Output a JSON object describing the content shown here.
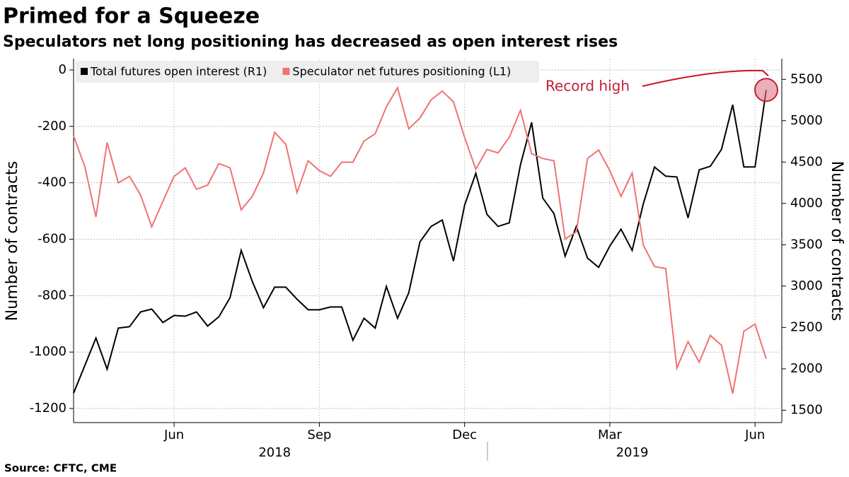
{
  "chart_data": {
    "type": "line",
    "title": "Primed for a Squeeze",
    "subtitle": "Speculators net long positioning has decreased as open interest rises",
    "source": "Source: CFTC, CME",
    "y_label": "Number of contracts",
    "y2_label": "Number of contracts",
    "annotation": "Record high",
    "categories": [
      null,
      null,
      null,
      null,
      null,
      null,
      null,
      null,
      null,
      "Jun",
      null,
      null,
      null,
      null,
      null,
      null,
      null,
      null,
      null,
      null,
      null,
      null,
      "Sep",
      null,
      null,
      null,
      null,
      null,
      null,
      null,
      null,
      null,
      null,
      null,
      null,
      "Dec",
      null,
      null,
      null,
      null,
      null,
      null,
      null,
      null,
      null,
      null,
      null,
      null,
      "Mar",
      null,
      null,
      null,
      null,
      null,
      null,
      null,
      null,
      null,
      null,
      null,
      null,
      "Jun",
      null
    ],
    "year_categories": [
      null,
      null,
      null,
      null,
      null,
      null,
      null,
      null,
      null,
      null,
      null,
      null,
      null,
      null,
      null,
      null,
      null,
      null,
      "2018",
      null,
      null,
      null,
      null,
      null,
      null,
      null,
      null,
      null,
      null,
      null,
      null,
      null,
      null,
      null,
      null,
      null,
      null,
      null,
      null,
      null,
      null,
      null,
      null,
      null,
      null,
      null,
      null,
      null,
      null,
      null,
      "2019",
      null,
      null,
      null,
      null,
      null,
      null,
      null,
      null,
      null,
      null,
      null,
      null
    ],
    "series": [
      {
        "name": "Total futures open interest (R1)",
        "color": "#000000",
        "axis": "y2",
        "values": [
          1705,
          2038,
          2372,
          1996,
          2492,
          2509,
          2688,
          2722,
          2560,
          2645,
          2637,
          2688,
          2517,
          2628,
          2859,
          3432,
          3056,
          2739,
          2987,
          2987,
          2842,
          2714,
          2714,
          2748,
          2748,
          2346,
          2611,
          2492,
          2996,
          2611,
          2919,
          3534,
          3722,
          3799,
          3303,
          3979,
          4363,
          3868,
          3722,
          3765,
          4466,
          4979,
          4064,
          3876,
          3363,
          3722,
          3338,
          3227,
          3483,
          3688,
          3432,
          3996,
          4440,
          4329,
          4320,
          3825,
          4406,
          4449,
          4654,
          5192,
          4440,
          4440,
          5372
        ]
      },
      {
        "name": "Speculator net futures positioning (L1)",
        "color": "#f07272",
        "axis": "y",
        "values": [
          -234,
          -342,
          -521,
          -257,
          -400,
          -377,
          -443,
          -556,
          -465,
          -377,
          -347,
          -423,
          -408,
          -332,
          -347,
          -496,
          -448,
          -365,
          -221,
          -264,
          -435,
          -322,
          -357,
          -377,
          -327,
          -327,
          -252,
          -226,
          -131,
          -63,
          -209,
          -171,
          -106,
          -75,
          -113,
          -239,
          -352,
          -282,
          -294,
          -239,
          -143,
          -297,
          -314,
          -322,
          -599,
          -574,
          -314,
          -284,
          -357,
          -448,
          -365,
          -621,
          -697,
          -704,
          -1057,
          -963,
          -1036,
          -941,
          -976,
          -1147,
          -926,
          -901,
          -1024
        ]
      }
    ],
    "ylim": [
      -1250,
      40
    ],
    "yticks": [
      0,
      -200,
      -400,
      -600,
      -800,
      -1000,
      -1200
    ],
    "y2lim": [
      1350,
      5750
    ],
    "y2ticks": [
      1500,
      2000,
      2500,
      3000,
      3500,
      4000,
      4500,
      5000,
      5500
    ],
    "grid": true
  }
}
